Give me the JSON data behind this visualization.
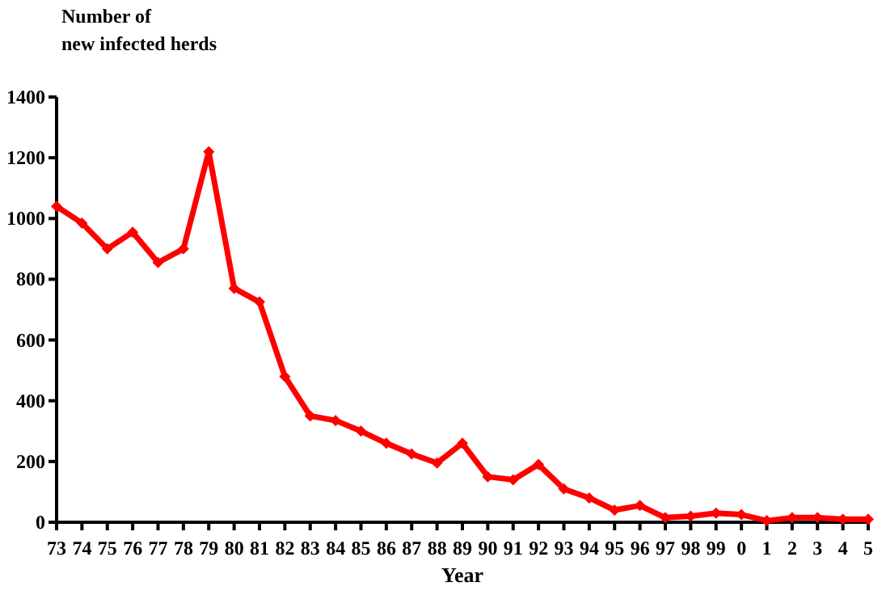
{
  "chart_data": {
    "type": "line",
    "ylabel": "Number of\nnew infected herds",
    "xlabel": "Year",
    "categories": [
      "73",
      "74",
      "75",
      "76",
      "77",
      "78",
      "79",
      "80",
      "81",
      "82",
      "83",
      "84",
      "85",
      "86",
      "87",
      "88",
      "89",
      "90",
      "91",
      "92",
      "93",
      "94",
      "95",
      "96",
      "97",
      "98",
      "99",
      "0",
      "1",
      "2",
      "3",
      "4",
      "5"
    ],
    "series": [
      {
        "color": "#ff0000",
        "values": [
          1040,
          985,
          900,
          955,
          855,
          900,
          1220,
          770,
          725,
          480,
          350,
          335,
          300,
          260,
          225,
          195,
          260,
          150,
          140,
          190,
          110,
          80,
          40,
          55,
          15,
          20,
          30,
          25,
          5,
          15,
          15,
          10,
          10
        ]
      }
    ],
    "ylim": [
      0,
      1400
    ],
    "yticks": [
      0,
      200,
      400,
      600,
      800,
      1000,
      1200,
      1400
    ],
    "marker": "diamond",
    "line_style": "solid",
    "grid": false
  }
}
